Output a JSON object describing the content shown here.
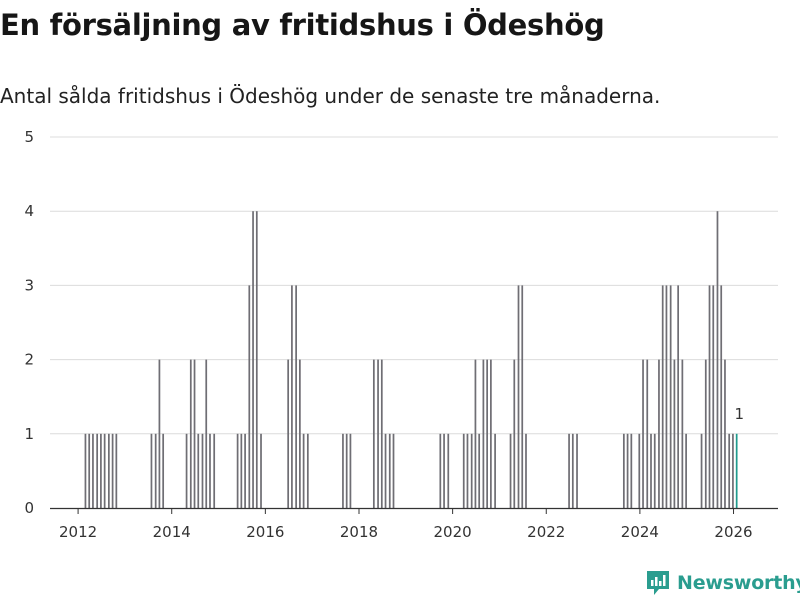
{
  "title": "En försäljning av fritidshus i Ödeshög",
  "subtitle": "Antal sålda fritidshus i Ödeshög under de senaste tre månaderna.",
  "brand": "Newsworthy",
  "colors": {
    "bar": "#6f6e74",
    "highlight": "#1f9b8e",
    "grid": "#dcdcdc",
    "axis": "#333333",
    "brand": "#2a9d8f"
  },
  "chart_data": {
    "type": "bar",
    "title": "En försäljning av fritidshus i Ödeshög",
    "subtitle": "Antal sålda fritidshus i Ödeshög under de senaste tre månaderna.",
    "xlabel": "",
    "ylabel": "",
    "xlim": [
      2011.4,
      2026.95
    ],
    "ylim": [
      0,
      5
    ],
    "yticks": [
      0,
      1,
      2,
      3,
      4,
      5
    ],
    "xticks": [
      "2012",
      "2014",
      "2016",
      "2018",
      "2020",
      "2022",
      "2024",
      "2026"
    ],
    "xtick_values": [
      2012,
      2014,
      2016,
      2018,
      2020,
      2022,
      2024,
      2026
    ],
    "grid": true,
    "bar_width_years": 0.0625,
    "highlight_label": "1",
    "bars": [
      {
        "x": 2012.17,
        "y": 1
      },
      {
        "x": 2012.25,
        "y": 1
      },
      {
        "x": 2012.33,
        "y": 1
      },
      {
        "x": 2012.42,
        "y": 1
      },
      {
        "x": 2012.5,
        "y": 1
      },
      {
        "x": 2012.58,
        "y": 1
      },
      {
        "x": 2012.67,
        "y": 1
      },
      {
        "x": 2012.75,
        "y": 1
      },
      {
        "x": 2012.83,
        "y": 1
      },
      {
        "x": 2013.58,
        "y": 1
      },
      {
        "x": 2013.67,
        "y": 1
      },
      {
        "x": 2013.75,
        "y": 2
      },
      {
        "x": 2013.83,
        "y": 1
      },
      {
        "x": 2014.33,
        "y": 1
      },
      {
        "x": 2014.42,
        "y": 2
      },
      {
        "x": 2014.5,
        "y": 2
      },
      {
        "x": 2014.58,
        "y": 1
      },
      {
        "x": 2014.67,
        "y": 1
      },
      {
        "x": 2014.75,
        "y": 2
      },
      {
        "x": 2014.83,
        "y": 1
      },
      {
        "x": 2014.92,
        "y": 1
      },
      {
        "x": 2015.42,
        "y": 1
      },
      {
        "x": 2015.5,
        "y": 1
      },
      {
        "x": 2015.58,
        "y": 1
      },
      {
        "x": 2015.67,
        "y": 3
      },
      {
        "x": 2015.75,
        "y": 4
      },
      {
        "x": 2015.83,
        "y": 4
      },
      {
        "x": 2015.92,
        "y": 1
      },
      {
        "x": 2016.5,
        "y": 2
      },
      {
        "x": 2016.58,
        "y": 3
      },
      {
        "x": 2016.67,
        "y": 3
      },
      {
        "x": 2016.75,
        "y": 2
      },
      {
        "x": 2016.83,
        "y": 1
      },
      {
        "x": 2016.92,
        "y": 1
      },
      {
        "x": 2017.67,
        "y": 1
      },
      {
        "x": 2017.75,
        "y": 1
      },
      {
        "x": 2017.83,
        "y": 1
      },
      {
        "x": 2018.33,
        "y": 2
      },
      {
        "x": 2018.42,
        "y": 2
      },
      {
        "x": 2018.5,
        "y": 2
      },
      {
        "x": 2018.58,
        "y": 1
      },
      {
        "x": 2018.67,
        "y": 1
      },
      {
        "x": 2018.75,
        "y": 1
      },
      {
        "x": 2019.75,
        "y": 1
      },
      {
        "x": 2019.83,
        "y": 1
      },
      {
        "x": 2019.92,
        "y": 1
      },
      {
        "x": 2020.25,
        "y": 1
      },
      {
        "x": 2020.33,
        "y": 1
      },
      {
        "x": 2020.42,
        "y": 1
      },
      {
        "x": 2020.5,
        "y": 2
      },
      {
        "x": 2020.58,
        "y": 1
      },
      {
        "x": 2020.67,
        "y": 2
      },
      {
        "x": 2020.75,
        "y": 2
      },
      {
        "x": 2020.83,
        "y": 2
      },
      {
        "x": 2020.92,
        "y": 1
      },
      {
        "x": 2021.25,
        "y": 1
      },
      {
        "x": 2021.33,
        "y": 2
      },
      {
        "x": 2021.42,
        "y": 3
      },
      {
        "x": 2021.5,
        "y": 3
      },
      {
        "x": 2021.58,
        "y": 1
      },
      {
        "x": 2022.5,
        "y": 1
      },
      {
        "x": 2022.58,
        "y": 1
      },
      {
        "x": 2022.67,
        "y": 1
      },
      {
        "x": 2023.67,
        "y": 1
      },
      {
        "x": 2023.75,
        "y": 1
      },
      {
        "x": 2023.83,
        "y": 1
      },
      {
        "x": 2024.0,
        "y": 1
      },
      {
        "x": 2024.08,
        "y": 2
      },
      {
        "x": 2024.17,
        "y": 2
      },
      {
        "x": 2024.25,
        "y": 1
      },
      {
        "x": 2024.33,
        "y": 1
      },
      {
        "x": 2024.42,
        "y": 2
      },
      {
        "x": 2024.5,
        "y": 3
      },
      {
        "x": 2024.58,
        "y": 3
      },
      {
        "x": 2024.67,
        "y": 3
      },
      {
        "x": 2024.75,
        "y": 2
      },
      {
        "x": 2024.83,
        "y": 3
      },
      {
        "x": 2024.92,
        "y": 2
      },
      {
        "x": 2025.0,
        "y": 1
      },
      {
        "x": 2025.33,
        "y": 1
      },
      {
        "x": 2025.42,
        "y": 2
      },
      {
        "x": 2025.5,
        "y": 3
      },
      {
        "x": 2025.58,
        "y": 3
      },
      {
        "x": 2025.67,
        "y": 4
      },
      {
        "x": 2025.75,
        "y": 3
      },
      {
        "x": 2025.83,
        "y": 2
      },
      {
        "x": 2025.92,
        "y": 1
      },
      {
        "x": 2026.0,
        "y": 1
      },
      {
        "x": 2026.08,
        "y": 1,
        "highlight": true
      }
    ]
  }
}
